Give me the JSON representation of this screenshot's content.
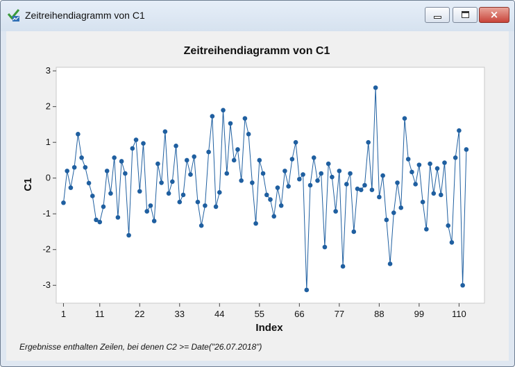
{
  "window": {
    "title": "Zeitreihendiagramm von C1",
    "buttons": {
      "minimize": "minimize",
      "maximize": "maximize",
      "close": "×"
    }
  },
  "footnote": "Ergebnisse enthalten Zeilen, bei denen C2 >= Date(\"26.07.2018\")",
  "chart_data": {
    "type": "line",
    "title": "Zeitreihendiagramm von C1",
    "xlabel": "Index",
    "ylabel": "C1",
    "xlim": [
      -1,
      117
    ],
    "ylim": [
      -3.5,
      3.1
    ],
    "x_ticks": [
      1,
      11,
      22,
      33,
      44,
      55,
      66,
      77,
      88,
      99,
      110
    ],
    "y_ticks": [
      3,
      2,
      1,
      0,
      -1,
      -2,
      -3
    ],
    "grid": false,
    "legend": "none",
    "colors": {
      "line": "#1f5fa0",
      "marker": "#1f5fa0",
      "plot_bg": "#ffffff",
      "plot_border": "#c8c8c8"
    },
    "series": [
      {
        "x": [
          1,
          2,
          3,
          4,
          5,
          6,
          7,
          8,
          9,
          10,
          11,
          12,
          13,
          14,
          15,
          16,
          17,
          18,
          19,
          20,
          21,
          22,
          23,
          24,
          25,
          26,
          27,
          28,
          29,
          30,
          31,
          32,
          33,
          34,
          35,
          36,
          37,
          38,
          39,
          40,
          41,
          42,
          43,
          44,
          45,
          46,
          47,
          48,
          49,
          50,
          51,
          52,
          53,
          54,
          55,
          56,
          57,
          58,
          59,
          60,
          61,
          62,
          63,
          64,
          65,
          66,
          67,
          68,
          69,
          70,
          71,
          72,
          73,
          74,
          75,
          76,
          77,
          78,
          79,
          80,
          81,
          82,
          83,
          84,
          85,
          86,
          87,
          88,
          89,
          90,
          91,
          92,
          93,
          94,
          95,
          96,
          97,
          98,
          99,
          100,
          101,
          102,
          103,
          104,
          105,
          106,
          107,
          108,
          109,
          110,
          111,
          112
        ],
        "values": [
          -0.69,
          0.2,
          -0.27,
          0.3,
          1.23,
          0.57,
          0.3,
          -0.14,
          -0.5,
          -1.17,
          -1.23,
          -0.8,
          0.2,
          -0.43,
          0.57,
          -1.1,
          0.47,
          0.13,
          -1.6,
          0.83,
          1.07,
          -0.37,
          0.97,
          -0.93,
          -0.77,
          -1.2,
          0.4,
          -0.13,
          1.3,
          -0.43,
          -0.1,
          0.9,
          -0.67,
          -0.47,
          0.5,
          0.1,
          0.6,
          -0.67,
          -1.33,
          -0.77,
          0.73,
          1.73,
          -0.8,
          -0.4,
          1.9,
          0.13,
          1.53,
          0.5,
          0.8,
          -0.07,
          1.67,
          1.23,
          -0.13,
          -1.27,
          0.5,
          0.13,
          -0.47,
          -0.6,
          -1.07,
          -0.27,
          -0.77,
          0.2,
          -0.23,
          0.53,
          1.0,
          -0.03,
          0.1,
          -3.13,
          -0.2,
          0.57,
          -0.07,
          0.13,
          -1.93,
          0.4,
          0.03,
          -0.93,
          0.2,
          -2.47,
          -0.17,
          0.13,
          -1.5,
          -0.3,
          -0.33,
          -0.2,
          1.0,
          -0.33,
          2.53,
          -0.53,
          0.07,
          -1.17,
          -2.4,
          -0.97,
          -0.13,
          -0.83,
          1.67,
          0.53,
          0.17,
          -0.17,
          0.37,
          -0.67,
          -1.43,
          0.4,
          -0.43,
          0.27,
          -0.47,
          0.43,
          -1.33,
          -1.8,
          0.57,
          1.33,
          -3.0,
          0.8
        ]
      }
    ]
  }
}
